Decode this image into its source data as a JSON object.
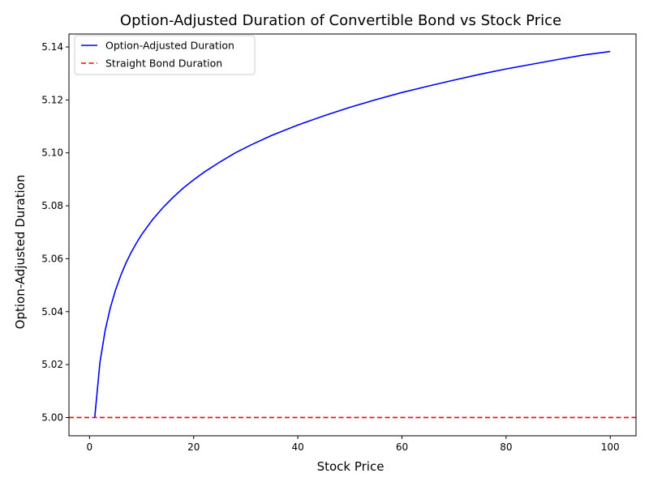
{
  "chart_data": {
    "type": "line",
    "title": "Option-Adjusted Duration of Convertible Bond vs Stock Price",
    "xlabel": "Stock Price",
    "ylabel": "Option-Adjusted Duration",
    "xlim": [
      -3.95,
      104.95
    ],
    "ylim": [
      4.9931,
      5.1449
    ],
    "xticks": [
      0,
      20,
      40,
      60,
      80,
      100
    ],
    "yticks": [
      5.0,
      5.02,
      5.04,
      5.06,
      5.08,
      5.1,
      5.12,
      5.14
    ],
    "xtick_labels": [
      "0",
      "20",
      "40",
      "60",
      "80",
      "100"
    ],
    "ytick_labels": [
      "5.00",
      "5.02",
      "5.04",
      "5.06",
      "5.08",
      "5.10",
      "5.12",
      "5.14"
    ],
    "grid": false,
    "legend_position": "top-left",
    "series": [
      {
        "name": "Option-Adjusted Duration",
        "color": "#0000ff",
        "style": "solid",
        "x": [
          1,
          2,
          3,
          4,
          5,
          6,
          7,
          8,
          9,
          10,
          12,
          14,
          16,
          18,
          20,
          22,
          25,
          28,
          31,
          35,
          40,
          45,
          50,
          55,
          60,
          65,
          70,
          75,
          80,
          85,
          90,
          95,
          100
        ],
        "y": [
          5.0,
          5.0208,
          5.0329,
          5.0415,
          5.0482,
          5.0537,
          5.0584,
          5.0624,
          5.0659,
          5.0691,
          5.0745,
          5.0791,
          5.0831,
          5.0867,
          5.0898,
          5.0927,
          5.0965,
          5.1,
          5.103,
          5.1066,
          5.1105,
          5.114,
          5.1172,
          5.1201,
          5.1228,
          5.1252,
          5.1275,
          5.1297,
          5.1317,
          5.1335,
          5.1353,
          5.137,
          5.1383
        ]
      },
      {
        "name": "Straight Bond Duration",
        "color": "#ff0000",
        "style": "dashed",
        "type": "hline",
        "y": 5.0
      }
    ]
  }
}
